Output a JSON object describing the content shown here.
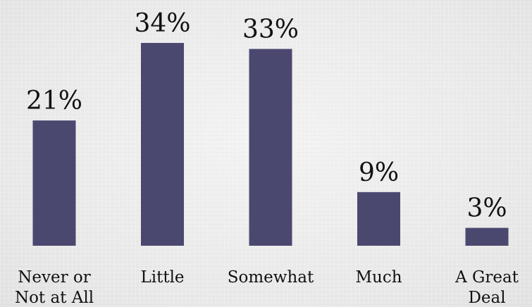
{
  "chart_data": {
    "type": "bar",
    "categories": [
      [
        "Never or",
        "Not at All"
      ],
      [
        "Little"
      ],
      [
        "Somewhat"
      ],
      [
        "Much"
      ],
      [
        "A Great",
        "Deal"
      ]
    ],
    "values": [
      21,
      34,
      33,
      9,
      3
    ],
    "data_labels": [
      "21%",
      "34%",
      "33%",
      "9%",
      "3%"
    ],
    "ylim": [
      0,
      34
    ],
    "title": "",
    "xlabel": "",
    "ylabel": "",
    "grid": false,
    "bar_color": "#4b4870"
  }
}
